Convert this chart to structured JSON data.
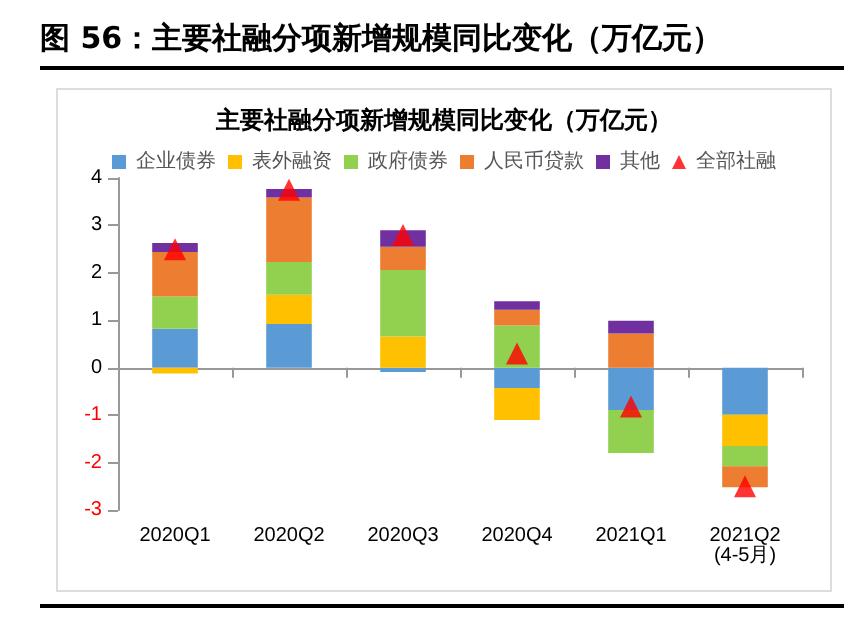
{
  "chart_data": {
    "type": "bar",
    "stacked": true,
    "title": "图 56：主要社融分项新增规模同比变化（万亿元）",
    "subtitle": "主要社融分项新增规模同比变化（万亿元）",
    "categories": [
      "2020Q1",
      "2020Q2",
      "2020Q3",
      "2020Q4",
      "2021Q1",
      "2021Q2\n(4-5月)"
    ],
    "series": [
      {
        "name": "企业债券",
        "color": "#5b9bd5",
        "values": [
          0.82,
          0.92,
          -0.09,
          -0.43,
          -0.89,
          -0.99
        ]
      },
      {
        "name": "表外融资",
        "color": "#ffc000",
        "values": [
          -0.12,
          0.62,
          0.66,
          -0.67,
          0,
          -0.66
        ]
      },
      {
        "name": "政府债券",
        "color": "#92d050",
        "values": [
          0.68,
          0.69,
          1.4,
          0.89,
          -0.91,
          -0.43
        ]
      },
      {
        "name": "人民币贷款",
        "color": "#ed7d31",
        "values": [
          0.94,
          1.36,
          0.49,
          0.33,
          0.72,
          -0.44
        ]
      },
      {
        "name": "其他",
        "color": "#7030a0",
        "values": [
          0.19,
          0.18,
          0.35,
          0.18,
          0.27,
          0
        ]
      },
      {
        "name": "全部社融",
        "type": "scatter",
        "color": "#ff0000",
        "values": [
          2.5,
          3.75,
          2.8,
          0.3,
          -0.82,
          -2.5
        ]
      }
    ],
    "ylim": [
      -3,
      4
    ],
    "yticks": [
      -3,
      -2,
      -1,
      0,
      1,
      2,
      3,
      4
    ],
    "legend": "top",
    "marker": "triangle"
  }
}
